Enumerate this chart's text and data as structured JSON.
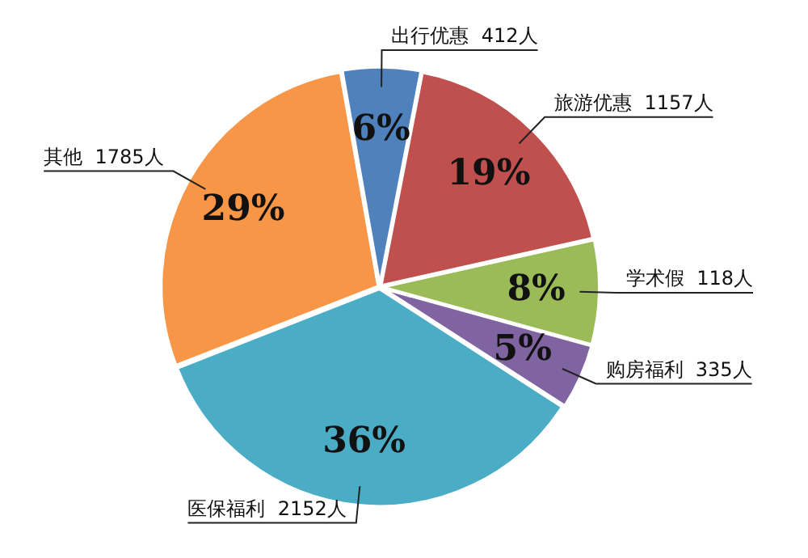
{
  "chart_data": {
    "type": "pie",
    "categories": [
      "出行优惠  412人",
      "旅游优惠  1157人",
      "学术假  118人",
      "购房福利  335人",
      "医保福利  2152人",
      "其他  1785人"
    ],
    "values": [
      6,
      19,
      8,
      5,
      36,
      29
    ],
    "value_labels": [
      "6%",
      "19%",
      "8%",
      "5%",
      "36%",
      "29%"
    ],
    "colors": [
      "#4f81bd",
      "#c0504d",
      "#9bbb59",
      "#8064a2",
      "#4bacc6",
      "#f79646"
    ],
    "legend": false
  }
}
